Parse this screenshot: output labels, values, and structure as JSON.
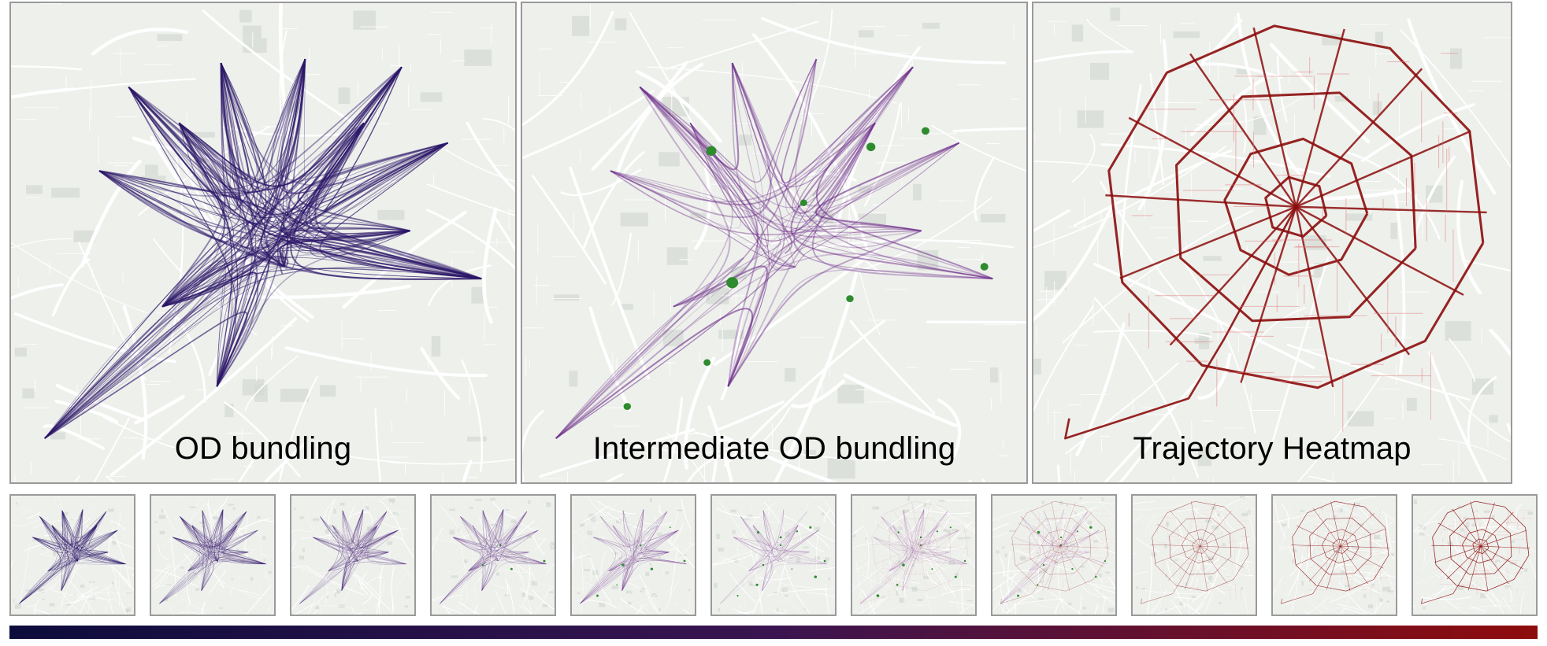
{
  "panels": [
    {
      "label": "OD bundling",
      "mode": "od"
    },
    {
      "label": "Intermediate OD bundling",
      "mode": "mid"
    },
    {
      "label": "Trajectory Heatmap",
      "mode": "heat"
    }
  ],
  "thumbnails": [
    {
      "t": 0.0
    },
    {
      "t": 0.1
    },
    {
      "t": 0.2
    },
    {
      "t": 0.3
    },
    {
      "t": 0.4
    },
    {
      "t": 0.5
    },
    {
      "t": 0.6
    },
    {
      "t": 0.7
    },
    {
      "t": 0.8
    },
    {
      "t": 0.9
    },
    {
      "t": 1.0
    }
  ],
  "colors": {
    "map_bg": "#eef0ec",
    "road": "#ffffff",
    "block": "#d4d8d4",
    "od_color": "#2b1668",
    "mid_purple": "#8a3a9a",
    "mid_magenta": "#a0205a",
    "node_green": "#2e8b2e",
    "heat_dark": "#8b0c0c",
    "heat_light": "#e07878",
    "colorbar_start": "#0c0c3c",
    "colorbar_mid": "#3a1450",
    "colorbar_end": "#8e0c0c"
  }
}
